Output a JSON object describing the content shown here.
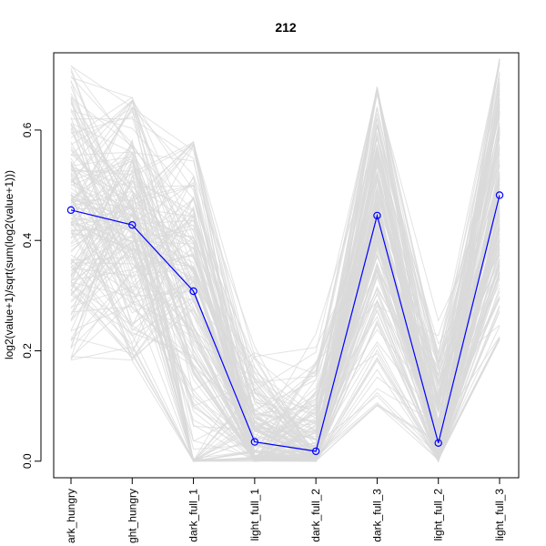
{
  "chart_data": {
    "type": "line",
    "title": "212",
    "xlabel": "",
    "ylabel": "log2(value+1)/sqrt(sum(log2(value+1)))",
    "categories": [
      "dark_hungry",
      "light_hungry",
      "dark_full_1",
      "light_full_1",
      "dark_full_2",
      "dark_full_3",
      "light_full_2",
      "light_full_3"
    ],
    "category_labels_shown": [
      "ark_hungry",
      "ght_hungry",
      "dark_full_1",
      "light_full_1",
      "dark_full_2",
      "dark_full_3",
      "light_full_2",
      "light_full_3"
    ],
    "ylim": [
      -0.03,
      0.74
    ],
    "yticks": [
      0.0,
      0.2,
      0.4,
      0.6
    ],
    "ytick_labels": [
      "0.0",
      "0.2",
      "0.4",
      "0.6"
    ],
    "grid": false,
    "highlight_color": "#0000ff",
    "background_line_color": "#d9d9d9",
    "series": [
      {
        "values": [
          0.455,
          0.428,
          0.308,
          0.035,
          0.018,
          0.445,
          0.033,
          0.482
        ],
        "highlighted": true,
        "markers": "open-circle"
      }
    ],
    "background_lines": {
      "center": [
        0.455,
        0.428,
        0.308,
        0.035,
        0.018,
        0.445,
        0.033,
        0.482
      ],
      "min": [
        0.18,
        0.18,
        0.0,
        0.0,
        0.0,
        0.1,
        0.0,
        0.22
      ],
      "max": [
        0.72,
        0.66,
        0.58,
        0.26,
        0.32,
        0.68,
        0.33,
        0.73
      ]
    }
  }
}
